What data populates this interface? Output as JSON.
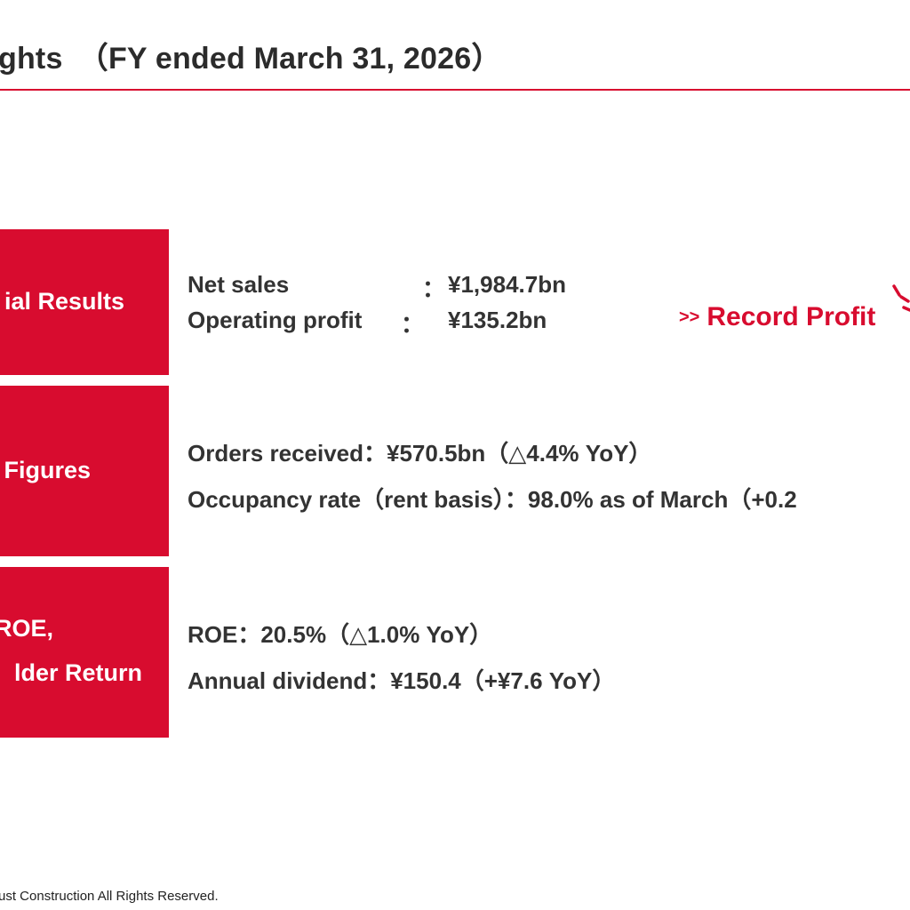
{
  "header": {
    "title": "ghts　（FY ended March 31, 2026）"
  },
  "rows": [
    {
      "label_lines": [
        "ial Results"
      ],
      "metrics": [
        {
          "label": "Net sales",
          "sep": "：",
          "value": "¥1,984.7bn"
        },
        {
          "label": "Operating profit",
          "sep": "：",
          "value": "¥135.2bn"
        }
      ]
    },
    {
      "label_lines": [
        "Figures"
      ],
      "lines": [
        "Orders received：¥570.5bn（△4.4% YoY）",
        "Occupancy rate（rent basis）：98.0% as of March（+0.2"
      ]
    },
    {
      "label_lines": [
        "ROE,",
        "lder Return"
      ],
      "lines": [
        "ROE：20.5%（△1.0% YoY）",
        "Annual dividend：¥150.4（+¥7.6 YoY）"
      ]
    }
  ],
  "callout": {
    "arrows": ">>",
    "text": "Record Profit"
  },
  "footer": {
    "text": "ust Construction All Rights Reserved."
  },
  "colors": {
    "accent": "#d80c2f",
    "text": "#333333"
  }
}
